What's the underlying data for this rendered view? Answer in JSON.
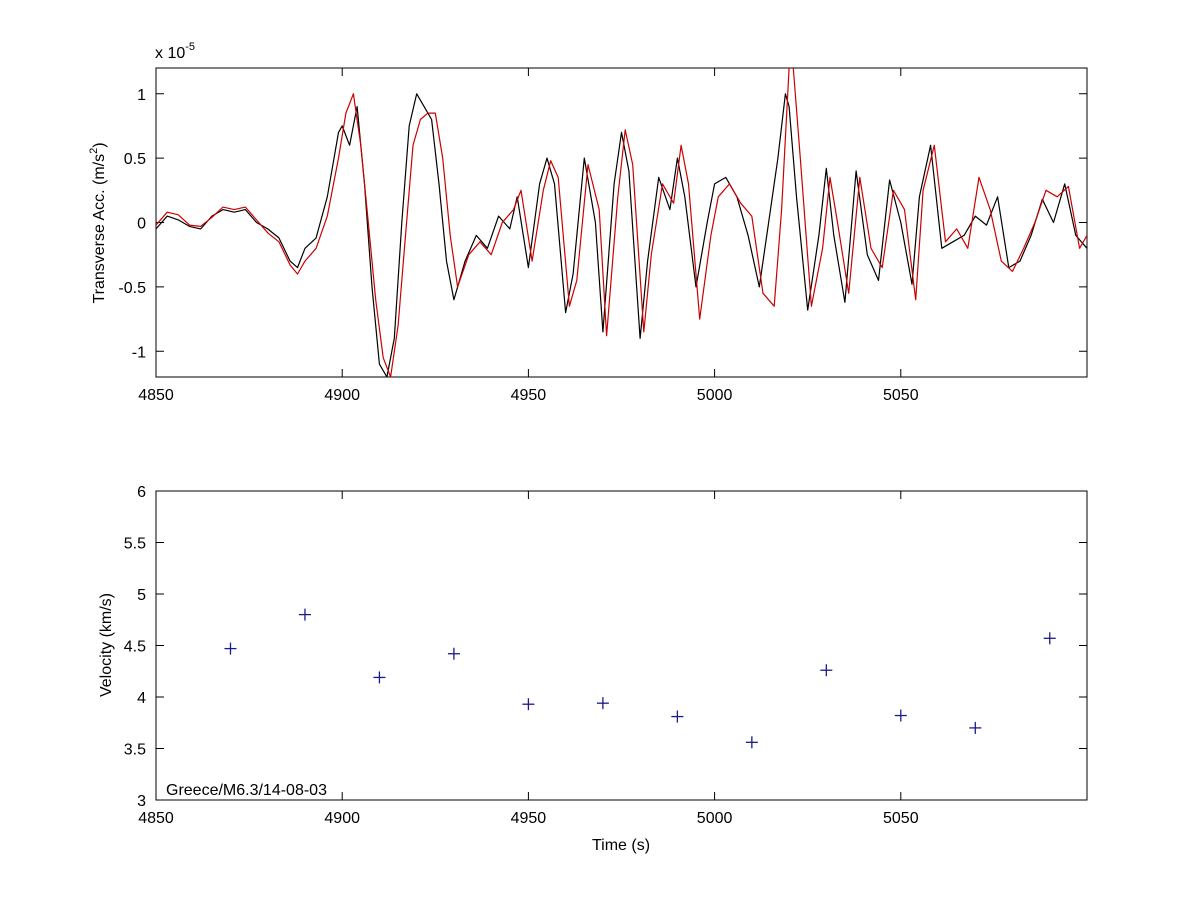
{
  "chart_data": [
    {
      "type": "line",
      "ylabel": "Transverse Acc. (m/s²)",
      "ylabel_base": "Transverse Acc. (m/s",
      "ylabel_sup": "2",
      "ylabel_close": ")",
      "multiplier_base": "x 10",
      "multiplier_exp": "-5",
      "xlim": [
        4850,
        5100
      ],
      "ylim": [
        -1.2,
        1.2
      ],
      "x_ticks": [
        4850,
        4900,
        4950,
        5000,
        5050
      ],
      "y_ticks": [
        -1,
        -0.5,
        0,
        0.5,
        1
      ],
      "x_tick_labels": [
        "4850",
        "4900",
        "4950",
        "5000",
        "5050"
      ],
      "y_tick_labels": [
        "-1",
        "-0.5",
        "0",
        "0.5",
        "1"
      ],
      "grid": false,
      "series": [
        {
          "color": "#000000",
          "x": [
            4850,
            4853,
            4856,
            4859,
            4862,
            4865,
            4868,
            4871,
            4874,
            4877,
            4880,
            4883,
            4886,
            4888,
            4890,
            4893,
            4896,
            4899,
            4900,
            4902,
            4904,
            4906,
            4908,
            4910,
            4912,
            4914,
            4916,
            4918,
            4920,
            4922,
            4924,
            4926,
            4928,
            4930,
            4933,
            4936,
            4939,
            4942,
            4945,
            4947,
            4950,
            4953,
            4955,
            4957,
            4960,
            4962,
            4965,
            4968,
            4970,
            4973,
            4975,
            4977,
            4980,
            4982,
            4985,
            4988,
            4990,
            4992,
            4995,
            4998,
            5000,
            5003,
            5006,
            5009,
            5012,
            5015,
            5017,
            5019,
            5020,
            5022,
            5025,
            5028,
            5030,
            5032,
            5035,
            5038,
            5041,
            5044,
            5047,
            5050,
            5053,
            5055,
            5058,
            5061,
            5064,
            5067,
            5070,
            5073,
            5076,
            5079,
            5082,
            5085,
            5088,
            5091,
            5094,
            5097,
            5100
          ],
          "y": [
            -0.05,
            0.05,
            0.02,
            -0.03,
            -0.05,
            0.05,
            0.1,
            0.08,
            0.1,
            0.0,
            -0.05,
            -0.12,
            -0.3,
            -0.35,
            -0.2,
            -0.12,
            0.2,
            0.7,
            0.75,
            0.6,
            0.9,
            0.3,
            -0.5,
            -1.1,
            -1.2,
            -0.9,
            0.0,
            0.75,
            1.0,
            0.9,
            0.8,
            0.3,
            -0.3,
            -0.6,
            -0.3,
            -0.1,
            -0.2,
            0.05,
            -0.05,
            0.2,
            -0.35,
            0.3,
            0.5,
            0.3,
            -0.7,
            -0.4,
            0.5,
            0.0,
            -0.85,
            0.3,
            0.7,
            0.4,
            -0.9,
            -0.3,
            0.35,
            0.1,
            0.5,
            0.2,
            -0.5,
            0.0,
            0.3,
            0.35,
            0.2,
            -0.1,
            -0.5,
            0.1,
            0.5,
            1.0,
            0.9,
            0.2,
            -0.68,
            -0.1,
            0.42,
            -0.1,
            -0.62,
            0.4,
            -0.25,
            -0.45,
            0.33,
            0.0,
            -0.48,
            0.2,
            0.6,
            -0.2,
            -0.15,
            -0.1,
            0.05,
            -0.02,
            0.2,
            -0.35,
            -0.3,
            -0.1,
            0.18,
            0.0,
            0.3,
            -0.1,
            -0.2
          ]
        },
        {
          "color": "#cc0000",
          "x": [
            4850,
            4853,
            4856,
            4859,
            4862,
            4865,
            4868,
            4871,
            4874,
            4877,
            4880,
            4883,
            4886,
            4888,
            4890,
            4893,
            4896,
            4899,
            4901,
            4903,
            4905,
            4907,
            4909,
            4911,
            4913,
            4915,
            4917,
            4919,
            4921,
            4923,
            4925,
            4927,
            4929,
            4931,
            4934,
            4937,
            4940,
            4943,
            4946,
            4948,
            4951,
            4954,
            4956,
            4958,
            4961,
            4963,
            4966,
            4969,
            4971,
            4974,
            4976,
            4978,
            4981,
            4983,
            4986,
            4989,
            4991,
            4993,
            4996,
            4999,
            5001,
            5004,
            5007,
            5010,
            5013,
            5016,
            5018,
            5020,
            5021,
            5023,
            5026,
            5029,
            5031,
            5033,
            5036,
            5039,
            5042,
            5045,
            5048,
            5051,
            5054,
            5056,
            5059,
            5062,
            5065,
            5068,
            5071,
            5074,
            5077,
            5080,
            5083,
            5086,
            5089,
            5092,
            5095,
            5098,
            5100
          ],
          "y": [
            -0.02,
            0.08,
            0.06,
            -0.02,
            -0.03,
            0.04,
            0.12,
            0.1,
            0.12,
            0.02,
            -0.08,
            -0.15,
            -0.33,
            -0.4,
            -0.3,
            -0.2,
            0.05,
            0.5,
            0.85,
            1.0,
            0.6,
            0.0,
            -0.6,
            -1.05,
            -1.2,
            -0.8,
            -0.1,
            0.6,
            0.8,
            0.85,
            0.85,
            0.5,
            -0.1,
            -0.5,
            -0.25,
            -0.15,
            -0.25,
            0.0,
            0.1,
            0.25,
            -0.3,
            0.25,
            0.48,
            0.35,
            -0.65,
            -0.45,
            0.45,
            0.1,
            -0.88,
            0.2,
            0.72,
            0.45,
            -0.85,
            -0.25,
            0.3,
            0.15,
            0.6,
            0.3,
            -0.75,
            -0.1,
            0.2,
            0.3,
            0.15,
            0.05,
            -0.55,
            -0.65,
            0.1,
            1.2,
            1.25,
            0.5,
            -0.65,
            -0.2,
            0.35,
            0.0,
            -0.55,
            0.35,
            -0.2,
            -0.35,
            0.25,
            0.1,
            -0.6,
            0.25,
            0.6,
            -0.15,
            -0.05,
            -0.2,
            0.35,
            0.1,
            -0.3,
            -0.38,
            -0.2,
            0.0,
            0.25,
            0.2,
            0.28,
            -0.2,
            -0.1
          ]
        }
      ]
    },
    {
      "type": "scatter",
      "xlabel": "Time (s)",
      "ylabel": "Velocity (km/s)",
      "annotation": "Greece/M6.3/14-08-03",
      "xlim": [
        4850,
        5100
      ],
      "ylim": [
        3,
        6
      ],
      "x_ticks": [
        4850,
        4900,
        4950,
        5000,
        5050
      ],
      "y_ticks": [
        3,
        3.5,
        4,
        4.5,
        5,
        5.5,
        6
      ],
      "x_tick_labels": [
        "4850",
        "4900",
        "4950",
        "5000",
        "5050"
      ],
      "y_tick_labels": [
        "3",
        "3.5",
        "4",
        "4.5",
        "5",
        "5.5",
        "6"
      ],
      "grid": false,
      "marker": "+",
      "marker_color": "#1a1a8c",
      "x": [
        4870,
        4890,
        4910,
        4930,
        4950,
        4970,
        4990,
        5010,
        5030,
        5050,
        5070,
        5090
      ],
      "y": [
        4.47,
        4.8,
        4.19,
        4.42,
        3.93,
        3.94,
        3.81,
        3.56,
        4.26,
        3.82,
        3.7,
        4.57
      ]
    }
  ]
}
